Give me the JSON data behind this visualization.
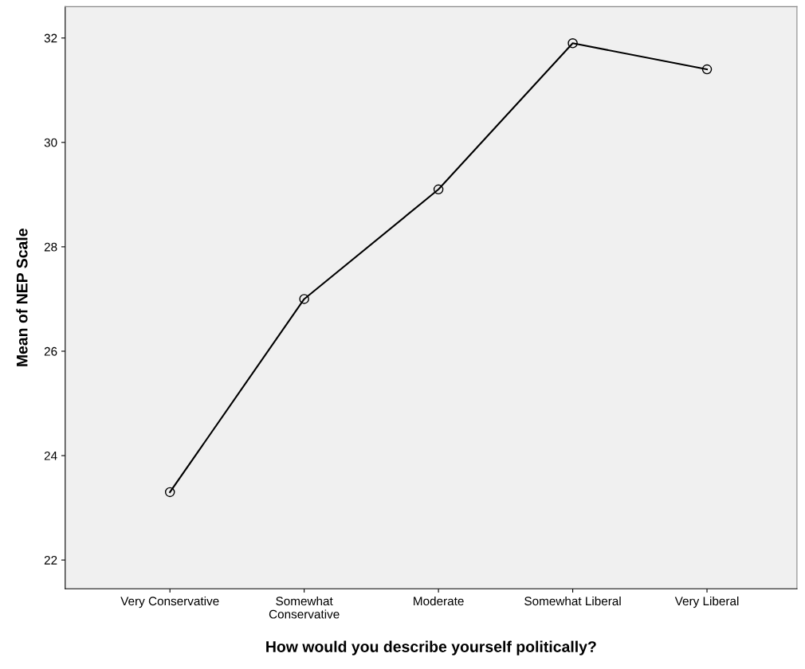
{
  "chart_data": {
    "type": "line",
    "xlabel": "How would you describe yourself politically?",
    "ylabel": "Mean of NEP Scale",
    "categories": [
      "Very Conservative",
      "Somewhat\nConservative",
      "Moderate",
      "Somewhat Liberal",
      "Very Liberal"
    ],
    "series": [
      {
        "color": "#000000",
        "values": [
          23.3,
          27.0,
          29.1,
          31.9,
          31.4
        ]
      }
    ],
    "ylim": [
      21.45,
      32.6
    ],
    "yticks": [
      22,
      24,
      26,
      28,
      30,
      32
    ],
    "marker": "circle",
    "line_style": "solid",
    "grid": false,
    "legend": false
  }
}
